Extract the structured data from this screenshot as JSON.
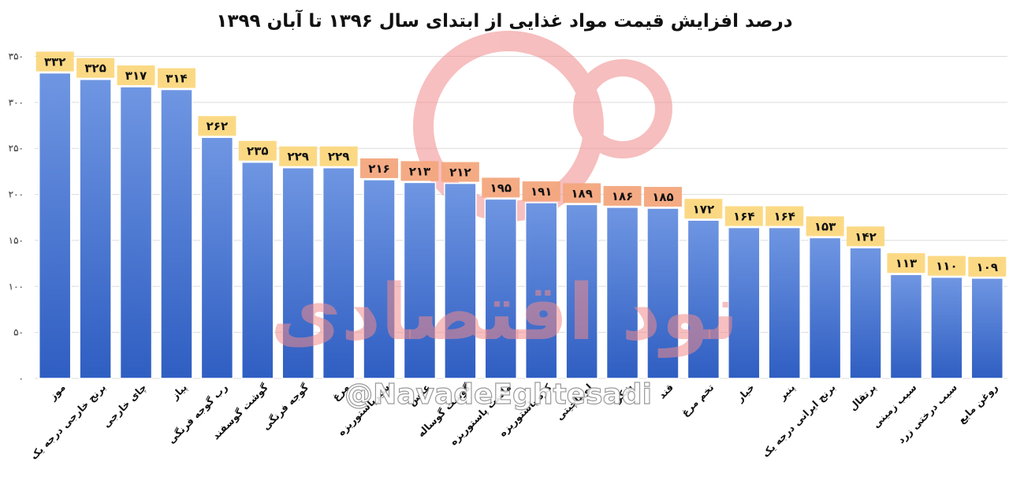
{
  "chart_data": {
    "type": "bar",
    "title": "درصد افزایش قیمت مواد غذایی از ابتدای سال ۱۳۹۶ تا آبان ۱۳۹۹",
    "categories": [
      "موز",
      "برنج خارجی درجه یک",
      "چای خارجی",
      "پیاز",
      "رب گوجه فرنگی",
      "گوشت گوسفند",
      "گوجه فرنگی",
      "مرغ",
      "شیرپاستوریزه",
      "عدس",
      "گوشت گوساله",
      "ماست پاستوریزه",
      "کره پاستوریزه",
      "لوبیاچیتی",
      "شکر",
      "قند",
      "تخم مرغ",
      "خیار",
      "پنیر",
      "برنج ایرانی درجه یک",
      "پرتقال",
      "سیب زمینی",
      "سیب درختی زرد",
      "روغن مایع"
    ],
    "values": [
      332,
      325,
      317,
      314,
      262,
      235,
      229,
      229,
      216,
      213,
      212,
      195,
      191,
      189,
      186,
      185,
      172,
      164,
      164,
      153,
      142,
      113,
      110,
      109
    ],
    "data_labels": [
      "۳۳۲",
      "۳۲۵",
      "۳۱۷",
      "۳۱۴",
      "۲۶۲",
      "۲۳۵",
      "۲۲۹",
      "۲۲۹",
      "۲۱۶",
      "۲۱۳",
      "۲۱۲",
      "۱۹۵",
      "۱۹۱",
      "۱۸۹",
      "۱۸۶",
      "۱۸۵",
      "۱۷۲",
      "۱۶۴",
      "۱۶۴",
      "۱۵۳",
      "۱۴۲",
      "۱۱۳",
      "۱۱۰",
      "۱۰۹"
    ],
    "ylim": [
      0,
      350
    ],
    "y_ticks": [
      0,
      50,
      100,
      150,
      200,
      250,
      300,
      350
    ],
    "y_tick_labels": [
      "۰",
      "۵۰",
      "۱۰۰",
      "۱۵۰",
      "۲۰۰",
      "۲۵۰",
      "۳۰۰",
      "۳۵۰"
    ],
    "xlabel": "",
    "ylabel": "",
    "grid": true,
    "legend": "none"
  },
  "watermark": {
    "logo_text": "نود اقتصادی",
    "handle": "@NavadeEghtesadi"
  },
  "colors": {
    "bar_top": "#6f96e2",
    "bar_bottom": "#2f5ec2",
    "label_bg": "#fbd77d",
    "label_bg_alt": "#f3a77d",
    "grid": "#dcdcdc",
    "watermark": "#f08a8a"
  }
}
